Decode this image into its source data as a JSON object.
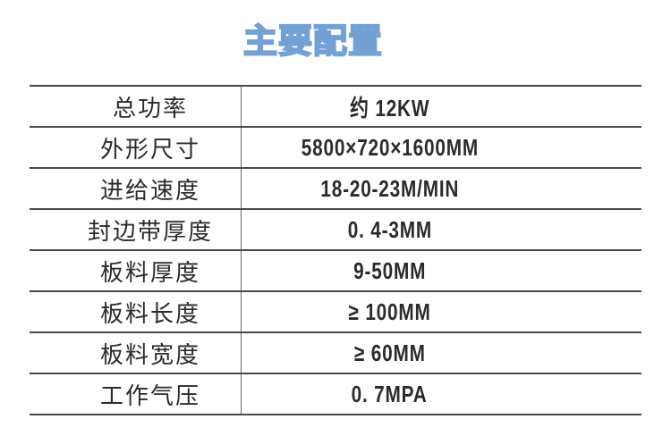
{
  "colors": {
    "title_blue": "#73a1d6",
    "line_dark": "#4a4a4a",
    "divider_gray": "#666666",
    "text_dark": "#2b2b2b"
  },
  "page": {
    "title": "主要配置"
  },
  "table": {
    "rows": [
      {
        "label": "总功率",
        "value": "约 12KW"
      },
      {
        "label": "外形尺寸",
        "value": "5800×720×1600MM"
      },
      {
        "label": "进给速度",
        "value": "18-20-23M/MIN"
      },
      {
        "label": "封边带厚度",
        "value": "0. 4-3MM"
      },
      {
        "label": "板料厚度",
        "value": "9-50MM"
      },
      {
        "label": "板料长度",
        "value": "≥ 100MM"
      },
      {
        "label": "板料宽度",
        "value": "≥ 60MM"
      },
      {
        "label": "工作气压",
        "value": "0. 7MPA"
      }
    ]
  }
}
